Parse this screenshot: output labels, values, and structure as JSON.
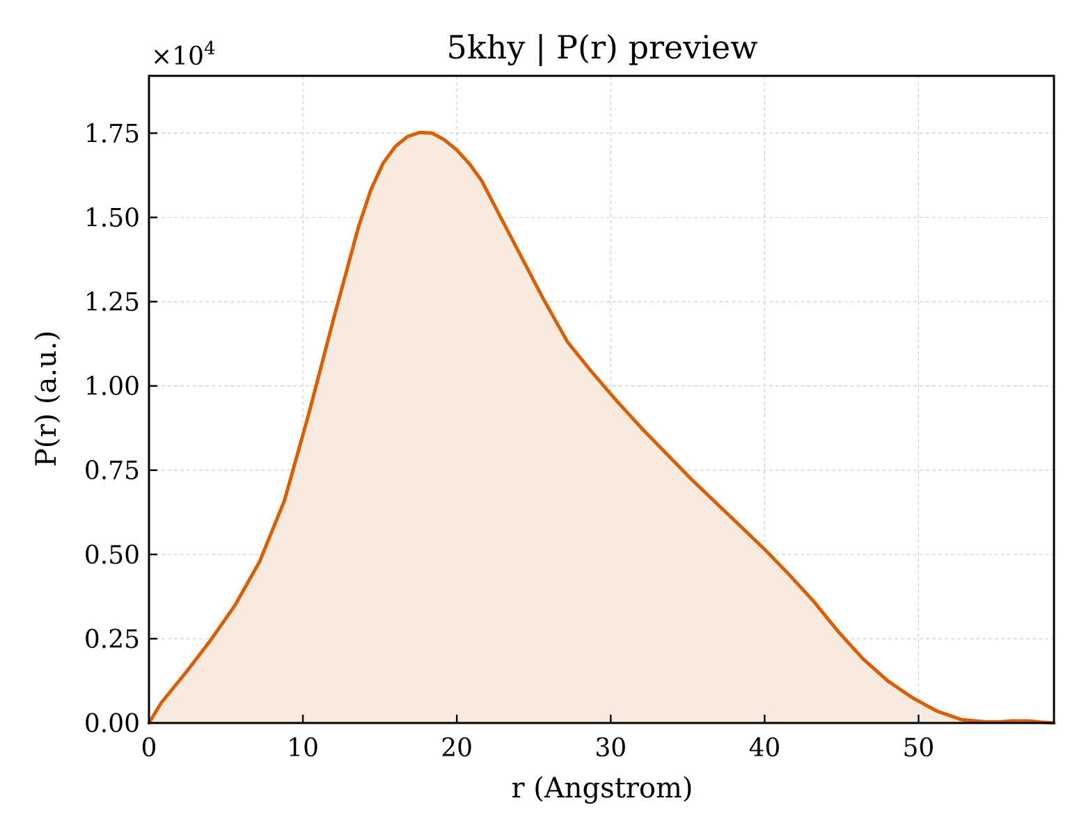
{
  "chart_data": {
    "type": "area",
    "title": "5khy | P(r) preview",
    "xlabel": "r (Angstrom)",
    "ylabel": "P(r) (a.u.)",
    "y_multiplier_label": "×10",
    "y_multiplier_exponent": "4",
    "xlim": [
      0,
      58.8
    ],
    "ylim": [
      0,
      1.92
    ],
    "x_ticks": [
      0,
      10,
      20,
      30,
      40,
      50
    ],
    "x_tick_labels": [
      "0",
      "10",
      "20",
      "30",
      "40",
      "50"
    ],
    "y_ticks": [
      0,
      0.25,
      0.5,
      0.75,
      1.0,
      1.25,
      1.5,
      1.75
    ],
    "y_tick_labels": [
      "0.00",
      "0.25",
      "0.50",
      "0.75",
      "1.00",
      "1.25",
      "1.50",
      "1.75"
    ],
    "grid": true,
    "colors": {
      "line": "#d95f02",
      "fill": "#f9eadf"
    },
    "series": [
      {
        "x": [
          0,
          0.8,
          2.4,
          4.0,
          5.6,
          7.2,
          8.8,
          10.4,
          12.0,
          13.6,
          14.4,
          15.2,
          16.0,
          16.8,
          17.6,
          18.4,
          19.2,
          20.0,
          20.8,
          21.6,
          22.4,
          24.0,
          25.6,
          27.2,
          28.8,
          30.4,
          32.0,
          33.6,
          35.2,
          36.8,
          38.4,
          40.0,
          41.6,
          43.2,
          44.8,
          46.4,
          48.0,
          49.6,
          51.2,
          52.8,
          54.4,
          55.2,
          56.0,
          57.2,
          58.0,
          58.8
        ],
        "y": [
          0.0,
          0.06,
          0.15,
          0.245,
          0.35,
          0.48,
          0.66,
          0.92,
          1.2,
          1.47,
          1.58,
          1.66,
          1.71,
          1.74,
          1.752,
          1.75,
          1.73,
          1.7,
          1.66,
          1.61,
          1.54,
          1.4,
          1.26,
          1.13,
          1.04,
          0.955,
          0.875,
          0.8,
          0.725,
          0.655,
          0.585,
          0.515,
          0.44,
          0.36,
          0.27,
          0.19,
          0.125,
          0.075,
          0.035,
          0.01,
          0.003,
          0.003,
          0.006,
          0.006,
          0.002,
          0.0
        ]
      }
    ]
  }
}
